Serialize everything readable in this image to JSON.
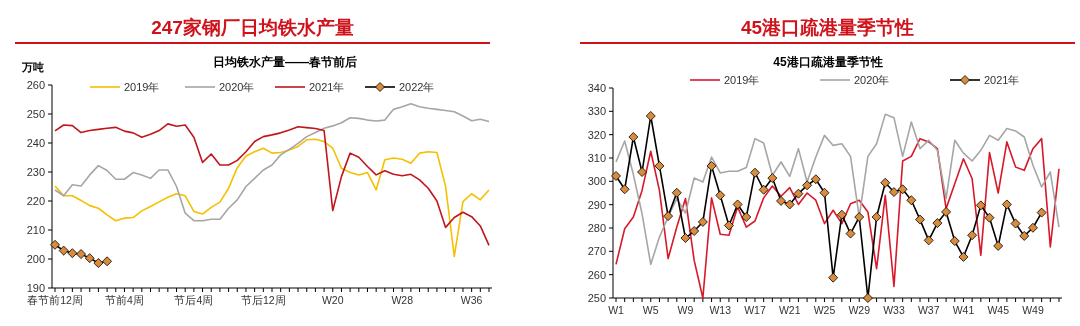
{
  "chart_data": [
    {
      "type": "line",
      "title": "247家钢厂日均铁水产量",
      "subtitle": "日均铁水产量——春节前后",
      "ylabel": "万吨",
      "categories": [
        "春节前12周",
        null,
        null,
        null,
        null,
        null,
        null,
        null,
        "节前4周",
        null,
        null,
        null,
        null,
        null,
        null,
        null,
        "节后4周",
        null,
        null,
        null,
        null,
        null,
        null,
        null,
        "节后12周",
        null,
        null,
        null,
        null,
        null,
        null,
        null,
        "W20",
        null,
        null,
        null,
        null,
        null,
        null,
        null,
        "W28",
        null,
        null,
        null,
        null,
        null,
        null,
        null,
        "W36",
        null,
        null
      ],
      "ylim": [
        190,
        260
      ],
      "yticks": [
        190,
        200,
        210,
        220,
        230,
        240,
        250,
        260
      ],
      "legend": "top",
      "grid": false,
      "series": [
        {
          "name": "2019年",
          "color": "#f5c000",
          "marker": "none",
          "values": [
            225.2,
            221.8,
            221.8,
            220.2,
            218.4,
            217.5,
            215.2,
            213.2,
            214.1,
            214.3,
            216.6,
            218.1,
            219.7,
            221.3,
            222.5,
            221.8,
            216.4,
            215.5,
            217.8,
            219.6,
            224.4,
            231.5,
            235.5,
            237,
            238.2,
            236.5,
            236.7,
            237.6,
            238.8,
            241.1,
            241.3,
            240.5,
            238.2,
            231.3,
            229.8,
            229,
            229.8,
            223.8,
            234.2,
            234.8,
            234.4,
            233,
            236.5,
            237,
            236.7,
            225,
            200.9,
            219.8,
            222.5,
            220.4,
            223.8
          ]
        },
        {
          "name": "2020年",
          "color": "#a6a6a6",
          "marker": "none",
          "values": [
            223.8,
            221.8,
            225.6,
            225.2,
            229,
            232.2,
            230.5,
            227.5,
            227.5,
            229.8,
            229,
            227.8,
            230.7,
            230.7,
            225,
            215.8,
            213.2,
            213.2,
            213.7,
            213.7,
            217.5,
            220.4,
            225,
            227.8,
            230.7,
            232.4,
            235.9,
            237.8,
            239.9,
            242.2,
            243.6,
            245.1,
            245.9,
            247,
            248.7,
            248.5,
            247.9,
            247.6,
            247.9,
            251.6,
            252.5,
            253.5,
            252.5,
            252,
            251.6,
            251.2,
            250.8,
            249.3,
            247.7,
            248.2,
            247.4
          ]
        },
        {
          "name": "2021年",
          "color": "#c0161e",
          "marker": "none",
          "values": [
            244.2,
            246.2,
            246,
            243.6,
            244.3,
            244.7,
            245.1,
            245.4,
            244.1,
            243.5,
            242,
            243,
            244.3,
            246.6,
            245.8,
            246.2,
            242,
            233.3,
            236.2,
            232.4,
            232.4,
            234,
            237,
            240.5,
            242.2,
            242.8,
            243.5,
            244.5,
            245.6,
            245.3,
            245,
            244.3,
            216.7,
            228.4,
            236.5,
            235.1,
            231.9,
            229,
            230.4,
            229.2,
            228.7,
            229.2,
            227.3,
            224.4,
            220,
            210.9,
            214.3,
            216.1,
            214.6,
            211.4,
            204.7
          ]
        },
        {
          "name": "2022年",
          "color": "#000000",
          "marker": "diamond",
          "values": [
            204.9,
            202.9,
            202,
            201.7,
            200.3,
            198.6,
            199.2,
            null,
            null,
            null,
            null,
            null,
            null,
            null,
            null,
            null,
            null,
            null,
            null,
            null,
            null,
            null,
            null,
            null,
            null,
            null,
            null,
            null,
            null,
            null,
            null,
            null,
            null,
            null,
            null,
            null,
            null,
            null,
            null,
            null,
            null,
            null,
            null,
            null,
            null,
            null,
            null,
            null,
            null,
            null,
            null
          ]
        }
      ]
    },
    {
      "type": "line",
      "title": "45港口疏港量季节性",
      "subtitle": "45港口疏港量季节性",
      "categories": [
        "W1",
        null,
        null,
        null,
        "W5",
        null,
        null,
        null,
        "W9",
        null,
        null,
        null,
        "W13",
        null,
        null,
        null,
        "W17",
        null,
        null,
        null,
        "W21",
        null,
        null,
        null,
        "W25",
        null,
        null,
        null,
        "W29",
        null,
        null,
        null,
        "W33",
        null,
        null,
        null,
        "W37",
        null,
        null,
        null,
        "W41",
        null,
        null,
        null,
        "W45",
        null,
        null,
        null,
        "W49",
        null,
        null,
        null
      ],
      "ylim": [
        250,
        340
      ],
      "yticks": [
        250,
        260,
        270,
        280,
        290,
        300,
        310,
        320,
        330,
        340
      ],
      "legend": "top",
      "grid": false,
      "series": [
        {
          "name": "2019年",
          "color": "#d7192a",
          "marker": "none",
          "values": [
            264.4,
            279.7,
            284.7,
            296.1,
            312.9,
            296.1,
            266.9,
            280.4,
            292.6,
            266.1,
            250,
            292.9,
            277.3,
            276.9,
            289,
            280.4,
            283,
            292.9,
            298,
            293.6,
            297.3,
            290.1,
            295,
            291.9,
            281.9,
            287.6,
            281.9,
            290.4,
            291.9,
            286.9,
            262.6,
            294,
            255,
            308.7,
            310.7,
            318.3,
            316.9,
            314,
            288.3,
            299,
            309.7,
            301.1,
            268.3,
            312.3,
            295,
            316.9,
            306.1,
            304.7,
            314,
            318.3,
            271.9,
            305.4
          ]
        },
        {
          "name": "2020年",
          "color": "#a6a6a6",
          "marker": "none",
          "values": [
            308.3,
            317.3,
            302.9,
            286.1,
            264.4,
            276.1,
            284.7,
            292.6,
            286.4,
            301.4,
            299.7,
            310.4,
            303.6,
            304.3,
            304.3,
            305.9,
            318.3,
            316.4,
            302.6,
            308.3,
            302.1,
            314,
            299.7,
            310.4,
            319.7,
            315.4,
            316.1,
            310.7,
            284.7,
            310.7,
            316.1,
            328.7,
            327.3,
            310.7,
            325.4,
            314,
            317.6,
            313.3,
            292.6,
            317.6,
            312.1,
            308.7,
            313.3,
            319.7,
            317.6,
            322.6,
            321.6,
            319,
            306.9,
            297.6,
            304,
            280.4
          ]
        },
        {
          "name": "2021年",
          "color": "#000000",
          "marker": "diamond",
          "values": [
            302.3,
            296.6,
            319,
            304,
            328,
            306.6,
            285.1,
            295.1,
            275.7,
            278.7,
            282.6,
            306.6,
            294,
            281.1,
            290.1,
            284.7,
            303.7,
            296.4,
            301.4,
            291.6,
            290.1,
            294.7,
            298.3,
            300.9,
            295.1,
            258.7,
            285.7,
            277.6,
            284.7,
            250,
            284.7,
            299.4,
            295.4,
            296.6,
            291.9,
            283.6,
            274.7,
            282.1,
            286.9,
            274.4,
            267.6,
            276.9,
            289.7,
            284.4,
            272.3,
            290.1,
            281.9,
            276.6,
            280.1,
            286.6,
            null,
            null
          ]
        }
      ]
    }
  ]
}
